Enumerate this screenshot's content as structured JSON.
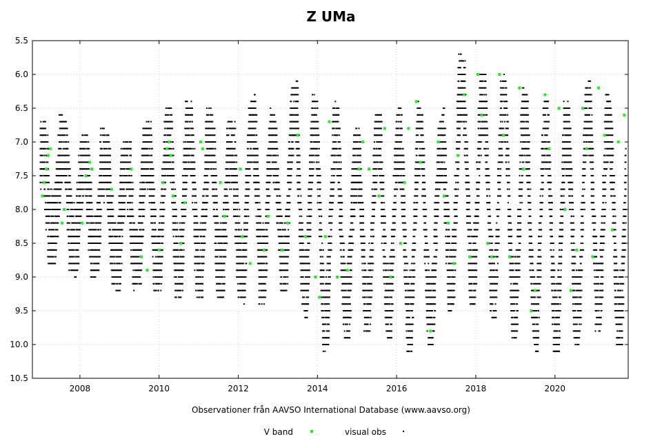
{
  "chart_data": {
    "type": "scatter",
    "title": "Z UMa",
    "xlabel": "Observationer från AAVSO International Database (www.aavso.org)",
    "ylabel": "",
    "xlim": [
      2006.8,
      2021.85
    ],
    "ylim": [
      10.5,
      5.5
    ],
    "y_inverted": true,
    "x_ticks": [
      2008,
      2010,
      2012,
      2014,
      2016,
      2018,
      2020
    ],
    "y_ticks": [
      5.5,
      6.0,
      6.5,
      7.0,
      7.5,
      8.0,
      8.5,
      9.0,
      9.5,
      10.0,
      10.5
    ],
    "y_tick_labels": [
      "5.5",
      "6.0",
      "6.5",
      "7.0",
      "7.5",
      "8.0",
      "8.5",
      "9.0",
      "9.5",
      "10.0",
      "10.5"
    ],
    "grid": true,
    "legend_position": "bottom-center",
    "series": [
      {
        "name": "V band",
        "color": "#22ee22",
        "marker": "square",
        "x": [
          2007.05,
          2007.1,
          2007.15,
          2007.2,
          2007.25,
          2007.55,
          2007.6,
          2008.05,
          2008.15,
          2008.25,
          2008.3,
          2008.8,
          2009.3,
          2009.55,
          2009.7,
          2010.0,
          2010.1,
          2010.2,
          2010.25,
          2010.3,
          2010.35,
          2010.55,
          2010.65,
          2011.05,
          2011.1,
          2011.55,
          2011.65,
          2012.05,
          2012.1,
          2012.3,
          2012.65,
          2012.75,
          2013.1,
          2013.25,
          2013.5,
          2013.7,
          2013.95,
          2014.05,
          2014.2,
          2014.3,
          2014.5,
          2014.75,
          2015.05,
          2015.15,
          2015.3,
          2015.55,
          2015.7,
          2015.85,
          2016.1,
          2016.2,
          2016.3,
          2016.5,
          2016.6,
          2016.85,
          2017.05,
          2017.2,
          2017.3,
          2017.45,
          2017.55,
          2017.7,
          2017.85,
          2018.05,
          2018.15,
          2018.3,
          2018.4,
          2018.6,
          2018.7,
          2018.85,
          2019.1,
          2019.2,
          2019.4,
          2019.5,
          2019.75,
          2019.85,
          2020.1,
          2020.25,
          2020.4,
          2020.55,
          2020.7,
          2020.8,
          2020.95,
          2021.1,
          2021.25,
          2021.45,
          2021.6,
          2021.75
        ],
        "y": [
          7.8,
          7.6,
          7.4,
          7.2,
          7.1,
          8.2,
          8.0,
          8.2,
          7.5,
          7.3,
          7.4,
          7.7,
          7.4,
          8.7,
          8.9,
          8.6,
          7.6,
          7.1,
          7.0,
          7.2,
          7.8,
          8.5,
          7.9,
          7.0,
          7.1,
          7.6,
          8.1,
          7.4,
          8.4,
          8.8,
          8.6,
          8.1,
          8.6,
          8.2,
          6.9,
          8.4,
          9.0,
          9.3,
          8.4,
          6.7,
          9.0,
          8.9,
          7.4,
          7.0,
          7.4,
          7.8,
          6.8,
          9.0,
          8.5,
          7.6,
          6.8,
          6.4,
          7.3,
          9.8,
          7.0,
          7.8,
          8.2,
          8.8,
          7.2,
          6.3,
          8.7,
          6.0,
          6.6,
          8.5,
          8.7,
          6.0,
          6.9,
          8.7,
          6.2,
          7.4,
          9.5,
          9.2,
          6.3,
          7.1,
          6.5,
          8.0,
          9.2,
          8.6,
          6.5,
          7.1,
          8.7,
          6.2,
          6.9,
          8.3,
          7.0,
          6.6
        ]
      },
      {
        "name": "visual obs",
        "color": "#000000",
        "marker": "dot",
        "envelope": {
          "year": [
            2007.0,
            2007.5,
            2008.0,
            2008.5,
            2009.0,
            2009.5,
            2010.0,
            2010.5,
            2011.0,
            2011.5,
            2012.0,
            2012.5,
            2013.0,
            2013.5,
            2014.0,
            2014.5,
            2015.0,
            2015.5,
            2016.0,
            2016.5,
            2017.0,
            2017.5,
            2018.0,
            2018.5,
            2019.0,
            2019.5,
            2020.0,
            2020.5,
            2021.0,
            2021.5
          ],
          "brightest": [
            6.8,
            6.6,
            7.0,
            6.8,
            7.1,
            6.9,
            6.6,
            6.4,
            6.5,
            6.6,
            6.8,
            6.2,
            6.7,
            6.1,
            6.4,
            6.5,
            6.9,
            6.6,
            6.6,
            6.4,
            7.0,
            5.7,
            6.0,
            6.0,
            6.2,
            6.4,
            6.4,
            6.5,
            6.0,
            6.5
          ],
          "faintest": [
            8.8,
            8.8,
            9.0,
            9.0,
            9.2,
            9.1,
            9.2,
            9.3,
            9.3,
            9.3,
            9.3,
            9.4,
            9.2,
            9.2,
            10.1,
            9.9,
            9.9,
            9.7,
            10.0,
            10.1,
            9.9,
            9.3,
            9.4,
            9.6,
            9.9,
            10.1,
            10.1,
            10.0,
            9.7,
            10.0
          ]
        }
      }
    ]
  },
  "legend": {
    "vband_label": "V band",
    "visual_label": "visual obs"
  }
}
